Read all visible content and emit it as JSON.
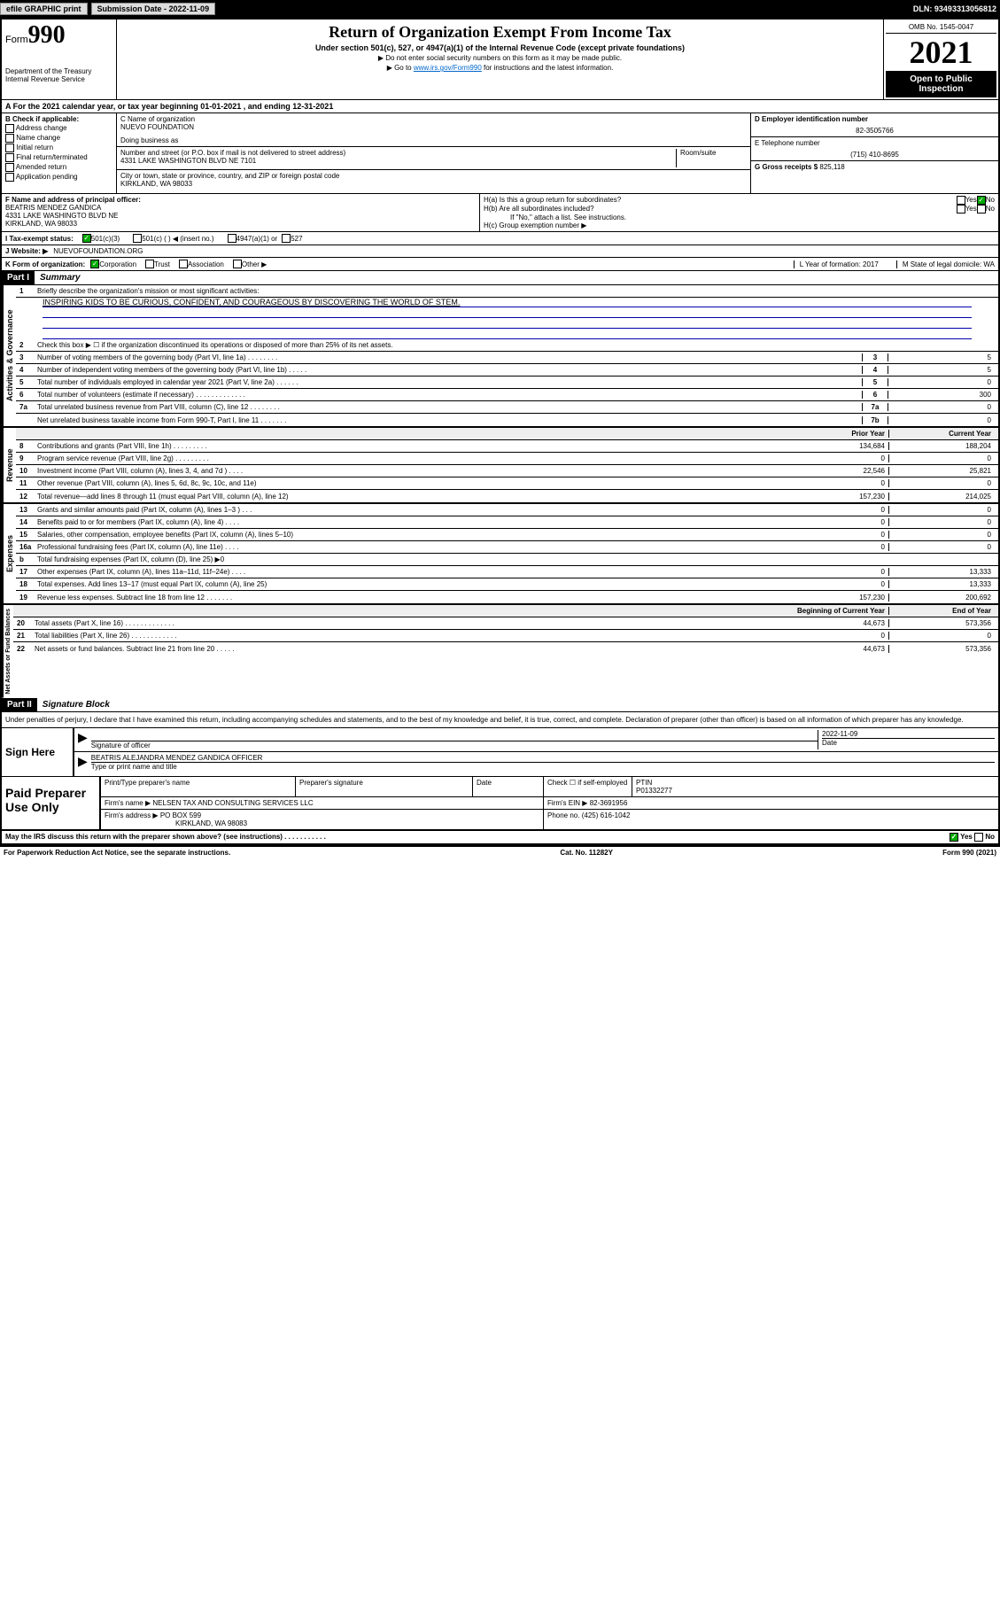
{
  "topbar": {
    "efile": "efile GRAPHIC print",
    "submission_label": "Submission Date - 2022-11-09",
    "dln": "DLN: 93493313056812"
  },
  "header": {
    "form_label": "Form",
    "form_no": "990",
    "title": "Return of Organization Exempt From Income Tax",
    "subtitle": "Under section 501(c), 527, or 4947(a)(1) of the Internal Revenue Code (except private foundations)",
    "note1": "▶ Do not enter social security numbers on this form as it may be made public.",
    "note2_prefix": "▶ Go to ",
    "note2_link": "www.irs.gov/Form990",
    "note2_suffix": " for instructions and the latest information.",
    "dept": "Department of the Treasury\nInternal Revenue Service",
    "omb": "OMB No. 1545-0047",
    "year": "2021",
    "inspection": "Open to Public Inspection"
  },
  "row_a": "A For the 2021 calendar year, or tax year beginning 01-01-2021   , and ending 12-31-2021",
  "col_b": {
    "title": "B Check if applicable:",
    "opts": [
      "Address change",
      "Name change",
      "Initial return",
      "Final return/terminated",
      "Amended return",
      "Application pending"
    ]
  },
  "col_c": {
    "name_label": "C Name of organization",
    "name": "NUEVO FOUNDATION",
    "dba_label": "Doing business as",
    "addr_label": "Number and street (or P.O. box if mail is not delivered to street address)",
    "room_label": "Room/suite",
    "addr": "4331 LAKE WASHINGTON BLVD NE 7101",
    "city_label": "City or town, state or province, country, and ZIP or foreign postal code",
    "city": "KIRKLAND, WA  98033"
  },
  "col_d": {
    "ein_label": "D Employer identification number",
    "ein": "82-3505766",
    "phone_label": "E Telephone number",
    "phone": "(715) 410-8695",
    "gross_label": "G Gross receipts $",
    "gross": "825,118"
  },
  "row_f": {
    "label": "F Name and address of principal officer:",
    "name": "BEATRIS MENDEZ GANDICA",
    "addr1": "4331 LAKE WASHINGTO BLVD NE",
    "addr2": "KIRKLAND, WA  98033"
  },
  "row_h": {
    "ha": "H(a)  Is this a group return for subordinates?",
    "hb": "H(b)  Are all subordinates included?",
    "hb_note": "If \"No,\" attach a list. See instructions.",
    "hc": "H(c)  Group exemption number ▶"
  },
  "row_i": {
    "label": "I   Tax-exempt status:",
    "opt1": "501(c)(3)",
    "opt2": "501(c) (   ) ◀ (insert no.)",
    "opt3": "4947(a)(1) or",
    "opt4": "527"
  },
  "row_j": {
    "label": "J   Website: ▶",
    "value": "NUEVOFOUNDATION.ORG"
  },
  "row_k": {
    "label": "K Form of organization:",
    "opts": [
      "Corporation",
      "Trust",
      "Association",
      "Other ▶"
    ],
    "l_label": "L Year of formation: 2017",
    "m_label": "M State of legal domicile: WA"
  },
  "parts": {
    "p1": "Part I",
    "p1_title": "Summary",
    "p2": "Part II",
    "p2_title": "Signature Block"
  },
  "summary": {
    "sections": [
      "Activities & Governance",
      "Revenue",
      "Expenses",
      "Net Assets or Fund Balances"
    ],
    "line1": "Briefly describe the organization's mission or most significant activities:",
    "mission": "INSPIRING KIDS TO BE CURIOUS, CONFIDENT, AND COURAGEOUS BY DISCOVERING THE WORLD OF STEM.",
    "line2": "Check this box ▶ ☐  if the organization discontinued its operations or disposed of more than 25% of its net assets.",
    "gov": [
      {
        "n": "3",
        "t": "Number of voting members of the governing body (Part VI, line 1a)  .   .   .   .   .   .   .   .",
        "b": "3",
        "v": "5"
      },
      {
        "n": "4",
        "t": "Number of independent voting members of the governing body (Part VI, line 1b)   .   .   .   .   .",
        "b": "4",
        "v": "5"
      },
      {
        "n": "5",
        "t": "Total number of individuals employed in calendar year 2021 (Part V, line 2a)   .   .   .   .   .   .",
        "b": "5",
        "v": "0"
      },
      {
        "n": "6",
        "t": "Total number of volunteers (estimate if necessary)   .   .   .   .   .   .   .   .   .   .   .   .   .",
        "b": "6",
        "v": "300"
      },
      {
        "n": "7a",
        "t": "Total unrelated business revenue from Part VIII, column (C), line 12   .   .   .   .   .   .   .   .",
        "b": "7a",
        "v": "0"
      },
      {
        "n": "",
        "t": "Net unrelated business taxable income from Form 990-T, Part I, line 11   .   .   .   .   .   .   .",
        "b": "7b",
        "v": "0"
      }
    ],
    "col_prior": "Prior Year",
    "col_current": "Current Year",
    "rev": [
      {
        "n": "8",
        "t": "Contributions and grants (Part VIII, line 1h)   .   .   .   .   .   .   .   .   .",
        "p": "134,684",
        "c": "188,204"
      },
      {
        "n": "9",
        "t": "Program service revenue (Part VIII, line 2g)   .   .   .   .   .   .   .   .   .",
        "p": "0",
        "c": "0"
      },
      {
        "n": "10",
        "t": "Investment income (Part VIII, column (A), lines 3, 4, and 7d )   .   .   .   .",
        "p": "22,546",
        "c": "25,821"
      },
      {
        "n": "11",
        "t": "Other revenue (Part VIII, column (A), lines 5, 6d, 8c, 9c, 10c, and 11e)",
        "p": "0",
        "c": "0"
      },
      {
        "n": "12",
        "t": "Total revenue—add lines 8 through 11 (must equal Part VIII, column (A), line 12)",
        "p": "157,230",
        "c": "214,025"
      }
    ],
    "exp": [
      {
        "n": "13",
        "t": "Grants and similar amounts paid (Part IX, column (A), lines 1–3 )   .   .   .",
        "p": "0",
        "c": "0"
      },
      {
        "n": "14",
        "t": "Benefits paid to or for members (Part IX, column (A), line 4)   .   .   .   .",
        "p": "0",
        "c": "0"
      },
      {
        "n": "15",
        "t": "Salaries, other compensation, employee benefits (Part IX, column (A), lines 5–10)",
        "p": "0",
        "c": "0"
      },
      {
        "n": "16a",
        "t": "Professional fundraising fees (Part IX, column (A), line 11e)   .   .   .   .",
        "p": "0",
        "c": "0"
      },
      {
        "n": "b",
        "t": "Total fundraising expenses (Part IX, column (D), line 25) ▶0",
        "p": "",
        "c": "",
        "gray": true
      },
      {
        "n": "17",
        "t": "Other expenses (Part IX, column (A), lines 11a–11d, 11f–24e)   .   .   .   .",
        "p": "0",
        "c": "13,333"
      },
      {
        "n": "18",
        "t": "Total expenses. Add lines 13–17 (must equal Part IX, column (A), line 25)",
        "p": "0",
        "c": "13,333"
      },
      {
        "n": "19",
        "t": "Revenue less expenses. Subtract line 18 from line 12   .   .   .   .   .   .   .",
        "p": "157,230",
        "c": "200,692"
      }
    ],
    "col_begin": "Beginning of Current Year",
    "col_end": "End of Year",
    "net": [
      {
        "n": "20",
        "t": "Total assets (Part X, line 16)   .   .   .   .   .   .   .   .   .   .   .   .   .",
        "p": "44,673",
        "c": "573,356"
      },
      {
        "n": "21",
        "t": "Total liabilities (Part X, line 26)   .   .   .   .   .   .   .   .   .   .   .   .",
        "p": "0",
        "c": "0"
      },
      {
        "n": "22",
        "t": "Net assets or fund balances. Subtract line 21 from line 20   .   .   .   .   .",
        "p": "44,673",
        "c": "573,356"
      }
    ]
  },
  "sig": {
    "text": "Under penalties of perjury, I declare that I have examined this return, including accompanying schedules and statements, and to the best of my knowledge and belief, it is true, correct, and complete. Declaration of preparer (other than officer) is based on all information of which preparer has any knowledge.",
    "sign_here": "Sign Here",
    "sig_officer": "Signature of officer",
    "date_label": "Date",
    "date": "2022-11-09",
    "name_title": "BEATRIS ALEJANDRA MENDEZ GANDICA  OFFICER",
    "name_label": "Type or print name and title"
  },
  "prep": {
    "title": "Paid Preparer Use Only",
    "h1": "Print/Type preparer's name",
    "h2": "Preparer's signature",
    "h3": "Date",
    "h4_check": "Check ☐ if self-employed",
    "h5": "PTIN",
    "ptin": "P01332277",
    "firm_name_label": "Firm's name   ▶",
    "firm_name": "NELSEN TAX AND CONSULTING SERVICES LLC",
    "firm_ein_label": "Firm's EIN ▶",
    "firm_ein": "82-3691956",
    "firm_addr_label": "Firm's address ▶",
    "firm_addr": "PO BOX 599",
    "firm_city": "KIRKLAND, WA  98083",
    "phone_label": "Phone no.",
    "phone": "(425) 616-1042"
  },
  "footer": {
    "discuss": "May the IRS discuss this return with the preparer shown above? (see instructions)   .   .   .   .   .   .   .   .   .   .   .",
    "yes": "Yes",
    "no": "No",
    "paperwork": "For Paperwork Reduction Act Notice, see the separate instructions.",
    "cat": "Cat. No. 11282Y",
    "form": "Form 990 (2021)"
  }
}
